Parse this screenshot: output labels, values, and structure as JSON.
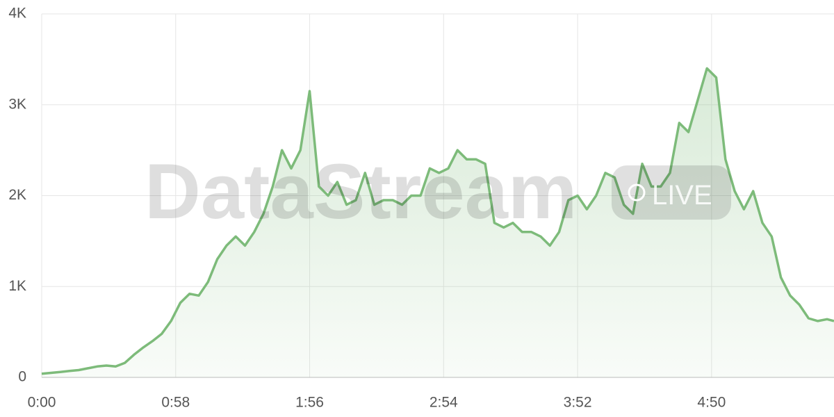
{
  "chart_data": {
    "type": "area",
    "watermark": "DataStream",
    "badge": "LIVE",
    "x": [
      0,
      4,
      8,
      12,
      16,
      20,
      24,
      28,
      32,
      36,
      40,
      44,
      48,
      52,
      56,
      60,
      64,
      68,
      72,
      76,
      80,
      84,
      88,
      92,
      96,
      100,
      104,
      108,
      112,
      116,
      120,
      124,
      128,
      132,
      136,
      140,
      144,
      148,
      152,
      156,
      160,
      164,
      168,
      172,
      176,
      180,
      184,
      188,
      192,
      196,
      200,
      204,
      208,
      212,
      216,
      220,
      224,
      228,
      232,
      236,
      240,
      244,
      248,
      252,
      256,
      260,
      264,
      268,
      272,
      276,
      280,
      284,
      288,
      292,
      296,
      300,
      304,
      308,
      312,
      316,
      320,
      324,
      328,
      332,
      336,
      340,
      343
    ],
    "series": [
      {
        "color": "#7dbb7a",
        "values": [
          40,
          50,
          60,
          70,
          80,
          100,
          120,
          130,
          120,
          160,
          250,
          330,
          400,
          480,
          620,
          820,
          920,
          900,
          1050,
          1300,
          1450,
          1550,
          1450,
          1600,
          1800,
          2100,
          2500,
          2300,
          2500,
          3150,
          2100,
          2000,
          2150,
          1900,
          1950,
          2250,
          1900,
          1950,
          1950,
          1900,
          2000,
          2000,
          2300,
          2250,
          2300,
          2500,
          2400,
          2400,
          2350,
          1700,
          1650,
          1700,
          1600,
          1600,
          1550,
          1450,
          1600,
          1950,
          2000,
          1850,
          2000,
          2250,
          2200,
          1900,
          1800,
          2350,
          2100,
          2100,
          2250,
          2800,
          2700,
          3050,
          3400,
          3300,
          2400,
          2050,
          1850,
          2050,
          1700,
          1550,
          1100,
          900,
          800,
          650,
          620,
          640,
          620
        ]
      }
    ],
    "xlim": [
      0,
      343
    ],
    "ylim": [
      0,
      4000
    ],
    "xticks": [
      {
        "value": 0,
        "label": "0:00"
      },
      {
        "value": 58,
        "label": "0:58"
      },
      {
        "value": 116,
        "label": "1:56"
      },
      {
        "value": 174,
        "label": "2:54"
      },
      {
        "value": 232,
        "label": "3:52"
      },
      {
        "value": 290,
        "label": "4:50"
      }
    ],
    "yticks": [
      0,
      {
        "value": 1000,
        "label": "1K"
      },
      {
        "value": 2000,
        "label": "2K"
      },
      {
        "value": 3000,
        "label": "3K"
      },
      {
        "value": 4000,
        "label": "4K"
      }
    ],
    "grid": true
  }
}
